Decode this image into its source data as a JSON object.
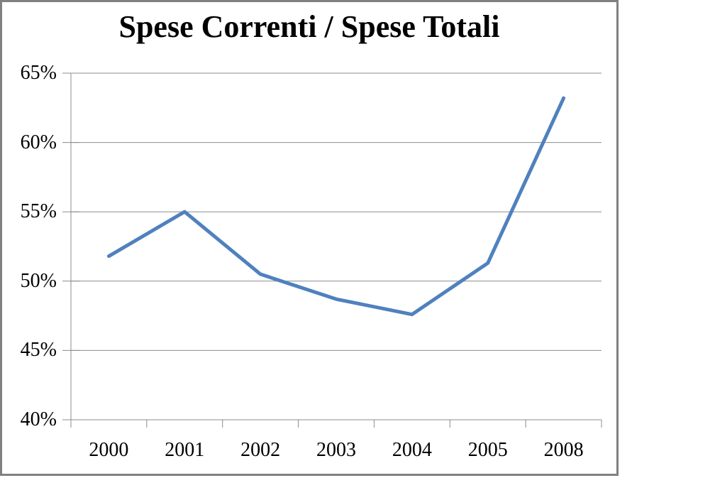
{
  "chart_data": {
    "type": "line",
    "title": "Spese Correnti / Spese Totali",
    "categories": [
      "2000",
      "2001",
      "2002",
      "2003",
      "2004",
      "2005",
      "2008"
    ],
    "values": [
      51.8,
      55.0,
      50.5,
      48.7,
      47.6,
      51.3,
      63.2
    ],
    "xlabel": "",
    "ylabel": "",
    "ylim": [
      40,
      65
    ],
    "ytick_step": 5,
    "ytick_labels": [
      "65%",
      "60%",
      "55%",
      "50%",
      "45%",
      "40%"
    ],
    "grid": "horizontal",
    "legend_position": "none",
    "colors": {
      "line": "#4F81BD",
      "gridline": "#8C8C8C",
      "axis": "#8C8C8C",
      "border": "#808080",
      "text": "#000000",
      "background": "#FFFFFF"
    }
  }
}
